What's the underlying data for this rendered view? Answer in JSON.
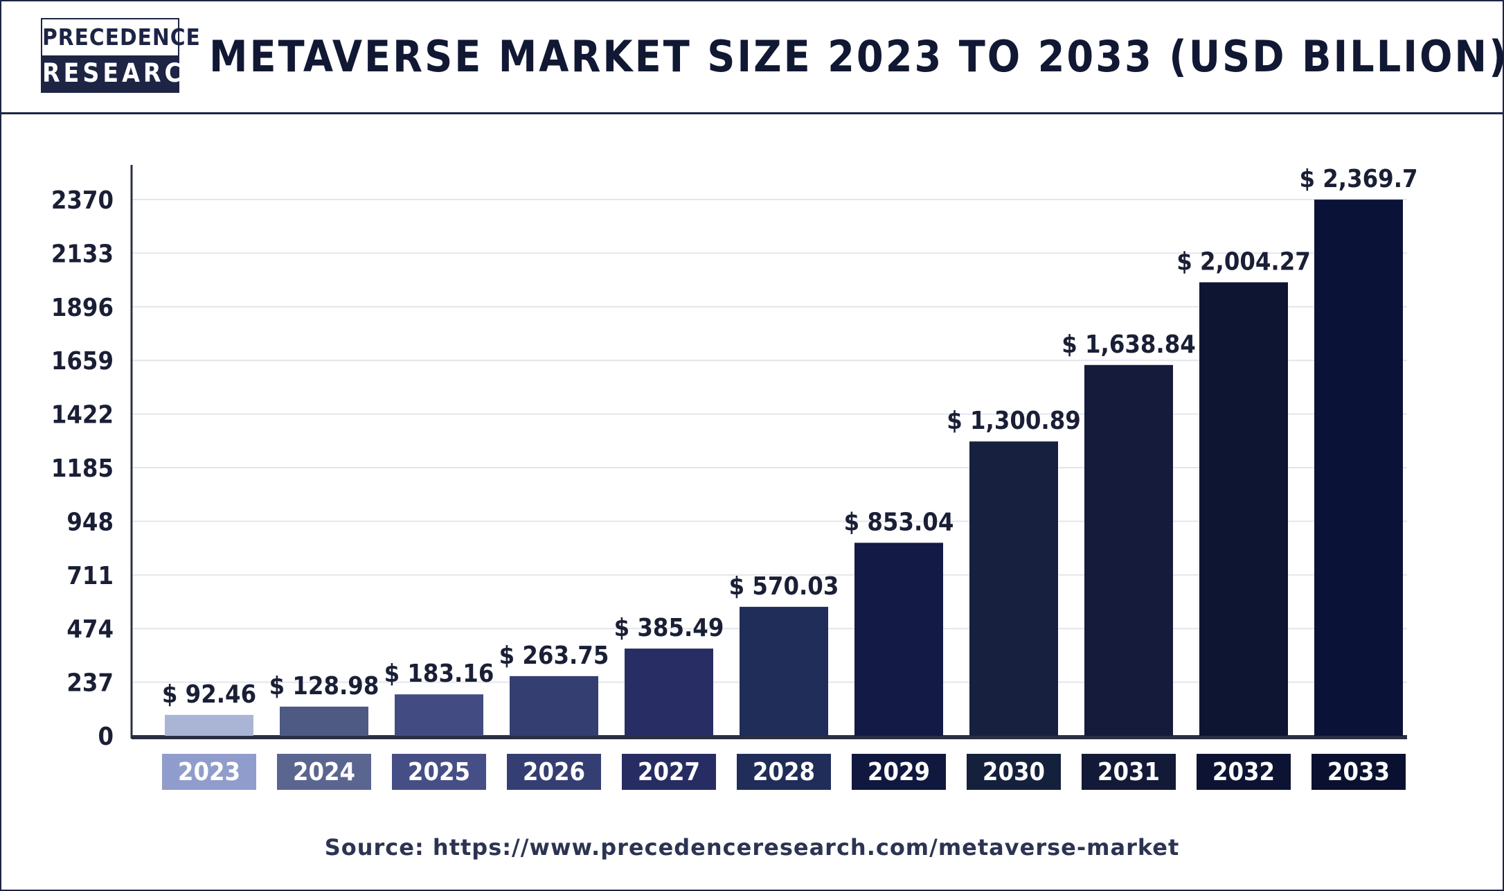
{
  "header": {
    "logo_line1": "PRECEDENCE",
    "logo_line2": "RESEARCH",
    "title": "METAVERSE MARKET SIZE 2023 TO 2033 (USD BILLION)"
  },
  "source": "Source: https://www.precedenceresearch.com/metaverse-market",
  "chart_data": {
    "type": "bar",
    "title": "METAVERSE MARKET SIZE 2023 TO 2033 (USD BILLION)",
    "xlabel": "",
    "ylabel": "",
    "categories": [
      "2023",
      "2024",
      "2025",
      "2026",
      "2027",
      "2028",
      "2029",
      "2030",
      "2031",
      "2032",
      "2033"
    ],
    "values": [
      92.46,
      128.98,
      183.16,
      263.75,
      385.49,
      570.03,
      853.04,
      1300.89,
      1638.84,
      2004.27,
      2369.7
    ],
    "value_labels": [
      "$ 92.46",
      "$ 128.98",
      "$ 183.16",
      "$ 263.75",
      "$ 385.49",
      "$ 570.03",
      "$ 853.04",
      "$ 1,300.89",
      "$ 1,638.84",
      "$ 2,004.27",
      "$ 2,369.7"
    ],
    "yticks": [
      0,
      237,
      474,
      711,
      948,
      1185,
      1422,
      1659,
      1896,
      2133,
      2370
    ],
    "ylim": [
      0,
      2370
    ],
    "grid": true,
    "legend": "none",
    "bar_colors": [
      "#aab5d6",
      "#4e5a84",
      "#434c82",
      "#343e71",
      "#282d63",
      "#1f2d58",
      "#131a46",
      "#17213f",
      "#141b3b",
      "#0e1533",
      "#0b1238"
    ],
    "year_box_colors": [
      "#909dcc",
      "#5a6590",
      "#464f85",
      "#343e72",
      "#272d62",
      "#1f2d58",
      "#11183f",
      "#14203c",
      "#121a37",
      "#0d1433",
      "#0a1130"
    ],
    "axis_color": "#2b2f44",
    "grid_color": "#e3e6ec",
    "label_color": "#1a1f36"
  }
}
